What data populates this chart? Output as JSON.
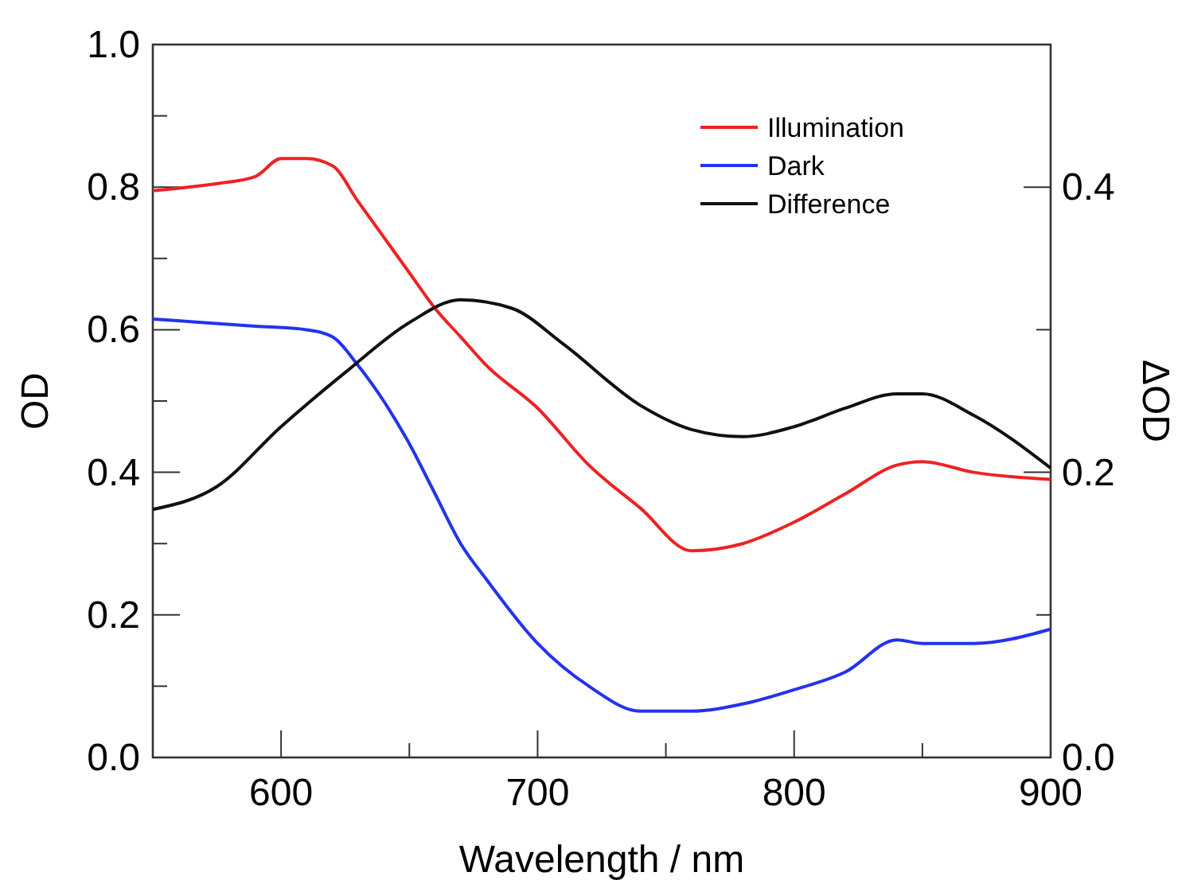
{
  "chart_data": {
    "type": "line",
    "xlabel": "Wavelength / nm",
    "ylabel": "OD",
    "y2label": "ΔOD",
    "xlim": [
      550,
      900
    ],
    "xticks": [
      {
        "value": 550,
        "label": null
      },
      600,
      {
        "value": 650,
        "label": null
      },
      700,
      {
        "value": 750,
        "label": null
      },
      800,
      {
        "value": 850,
        "label": null
      },
      900
    ],
    "ylim": [
      0,
      1
    ],
    "yticks": [
      {
        "value": 0,
        "label": "0.0"
      },
      {
        "value": 0.1,
        "label": null
      },
      0.2,
      {
        "value": 0.3,
        "label": null
      },
      0.4,
      {
        "value": 0.5,
        "label": null
      },
      0.6,
      {
        "value": 0.7,
        "label": null
      },
      0.8,
      {
        "value": 0.9,
        "label": null
      },
      {
        "value": 1,
        "label": "1.0"
      }
    ],
    "y2lim": [
      0,
      0.5
    ],
    "y2ticks": [
      {
        "value": 0,
        "label": "0.0"
      },
      {
        "value": 0.1,
        "label": null
      },
      0.2,
      {
        "value": 0.3,
        "label": null
      },
      0.4
    ],
    "grid": false,
    "legend": "top right",
    "marker": "none",
    "line_style": "solid",
    "series": [
      {
        "name": "Illumination",
        "color": "#ee2222",
        "x": [
          550,
          575,
          590,
          600,
          610,
          620,
          630,
          640,
          650,
          660,
          670,
          680,
          700,
          720,
          740,
          760,
          780,
          800,
          820,
          840,
          850,
          870,
          900
        ],
        "values": [
          0.795,
          0.805,
          0.815,
          0.84,
          0.84,
          0.83,
          0.78,
          0.73,
          0.68,
          0.63,
          0.59,
          0.55,
          0.49,
          0.41,
          0.35,
          0.29,
          0.3,
          0.33,
          0.37,
          0.41,
          0.415,
          0.4,
          0.39
        ]
      },
      {
        "name": "Dark",
        "color": "#2233ee",
        "x": [
          550,
          570,
          590,
          610,
          620,
          630,
          640,
          650,
          660,
          670,
          680,
          700,
          720,
          740,
          760,
          780,
          800,
          820,
          840,
          850,
          870,
          900
        ],
        "values": [
          0.615,
          0.61,
          0.605,
          0.6,
          0.59,
          0.55,
          0.5,
          0.44,
          0.37,
          0.3,
          0.25,
          0.16,
          0.1,
          0.065,
          0.065,
          0.075,
          0.095,
          0.12,
          0.165,
          0.16,
          0.16,
          0.18
        ]
      },
      {
        "name": "Difference",
        "color": "#111111",
        "axis": "y2",
        "x": [
          550,
          575,
          600,
          625,
          650,
          670,
          690,
          710,
          740,
          760,
          780,
          800,
          820,
          840,
          850,
          870,
          900
        ],
        "values": [
          0.174,
          0.19,
          0.232,
          0.27,
          0.305,
          0.321,
          0.315,
          0.29,
          0.247,
          0.23,
          0.225,
          0.232,
          0.245,
          0.255,
          0.255,
          0.24,
          0.203
        ]
      }
    ]
  }
}
